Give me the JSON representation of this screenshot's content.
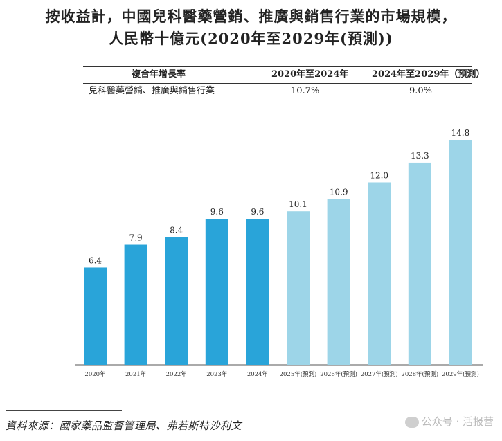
{
  "colors": {
    "actual": "#29a4d9",
    "forecast": "#9dd5e8"
  },
  "table": {
    "headers": [
      "複合年增長率",
      "2020年至2024年",
      "2024年至2029年（預測）"
    ],
    "row": [
      "兒科醫藥營銷、推廣與銷售行業",
      "10.7%",
      "9.0%"
    ]
  },
  "chart_data": {
    "type": "bar",
    "title": "按收益計，中國兒科醫藥營銷、推廣與銷售行業的市場規模，",
    "subtitle": "人民幣十億元(2020年至2029年(預測))",
    "categories": [
      "2020年",
      "2021年",
      "2022年",
      "2023年",
      "2024年",
      "2025年(預測)",
      "2026年(預測)",
      "2027年(預測)",
      "2028年(預測)",
      "2029年(預測)"
    ],
    "values": [
      6.4,
      7.9,
      8.4,
      9.6,
      9.6,
      10.1,
      10.9,
      12.0,
      13.3,
      14.8
    ],
    "value_labels": [
      "6.4",
      "7.9",
      "8.4",
      "9.6",
      "9.6",
      "10.1",
      "10.9",
      "12.0",
      "13.3",
      "14.8"
    ],
    "forecast_from_index": 5,
    "ylim": [
      0,
      14.8
    ],
    "xlabel": "",
    "ylabel": "",
    "grid": false
  },
  "source": "資料來源：國家藥品監督管理局、弗若斯特沙利文",
  "watermark": "公众号 · 活报营"
}
